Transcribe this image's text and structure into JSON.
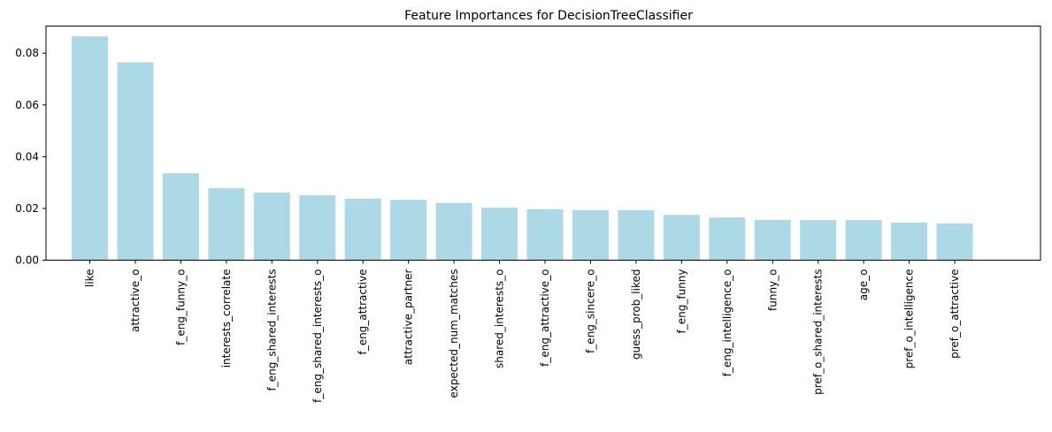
{
  "chart_data": {
    "type": "bar",
    "title": "Feature Importances for DecisionTreeClassifier",
    "xlabel": "",
    "ylabel": "",
    "ylim": [
      0,
      0.0905
    ],
    "yticks": [
      0.0,
      0.02,
      0.04,
      0.06,
      0.08
    ],
    "ytick_labels": [
      "0.00",
      "0.02",
      "0.04",
      "0.06",
      "0.08"
    ],
    "grid": false,
    "legend": "none",
    "bar_color": "#add8e6",
    "categories": [
      "like",
      "attractive_o",
      "f_eng_funny_o",
      "interests_correlate",
      "f_eng_shared_interests",
      "f_eng_shared_interests_o",
      "f_eng_attractive",
      "attractive_partner",
      "expected_num_matches",
      "shared_interests_o",
      "f_eng_attractive_o",
      "f_eng_sincere_o",
      "guess_prob_liked",
      "f_eng_funny",
      "f_eng_intelligence_o",
      "funny_o",
      "pref_o_shared_interests",
      "age_o",
      "pref_o_intelligence",
      "pref_o_attractive"
    ],
    "values": [
      0.0865,
      0.0765,
      0.0336,
      0.0278,
      0.0261,
      0.0251,
      0.0238,
      0.0233,
      0.0221,
      0.0203,
      0.0197,
      0.0193,
      0.0193,
      0.0175,
      0.0165,
      0.0156,
      0.0155,
      0.0155,
      0.0145,
      0.0142
    ]
  }
}
